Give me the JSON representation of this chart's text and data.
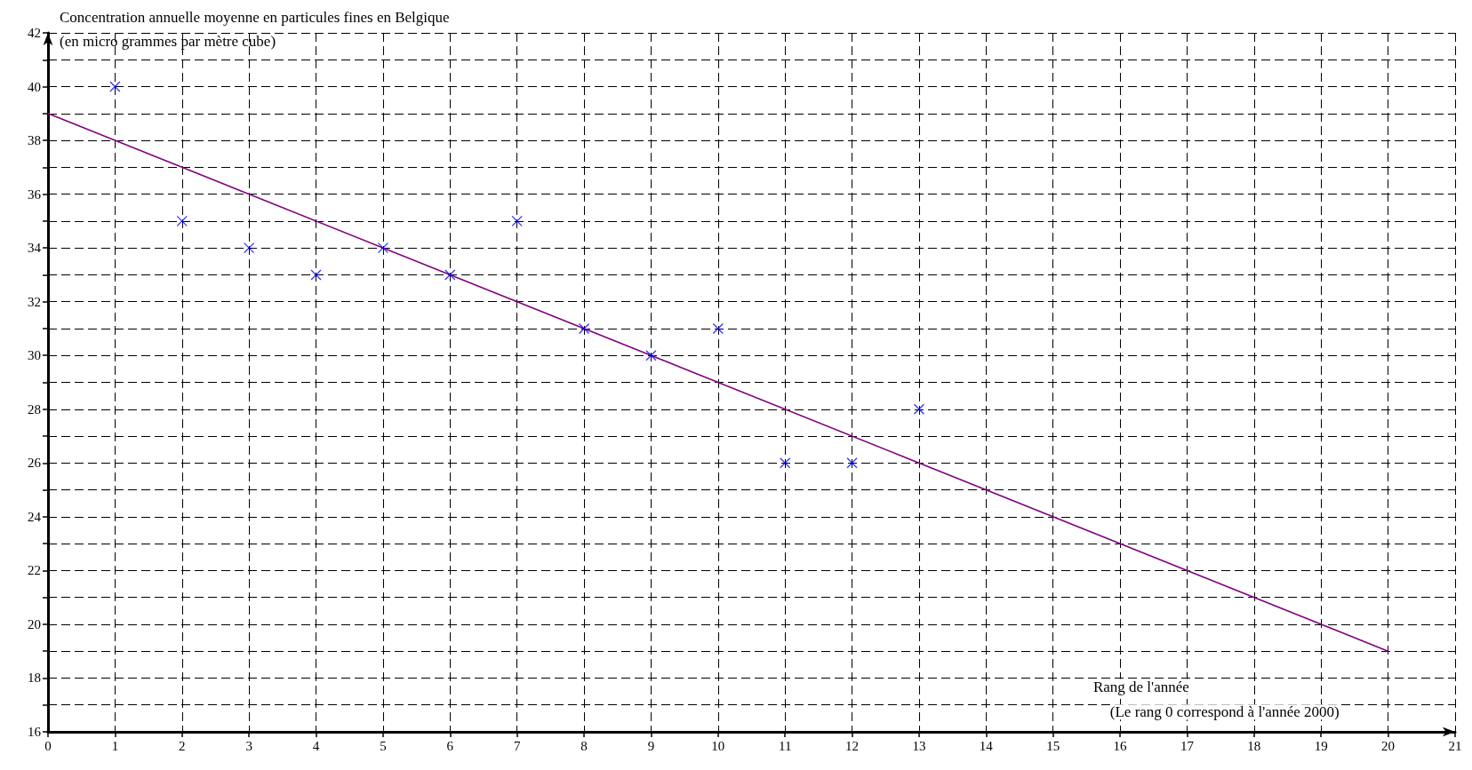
{
  "chart_data": {
    "type": "scatter",
    "title": "Concentration annuelle moyenne en particules fines en Belgique",
    "subtitle": "(en micro grammes par mètre cube)",
    "xlabel": "Rang de l'année",
    "annotations": [
      "(Le rang 0 correspond à l'année 2000)"
    ],
    "xlim": [
      0,
      21
    ],
    "xticks": [
      0,
      1,
      2,
      3,
      4,
      5,
      6,
      7,
      8,
      9,
      10,
      11,
      12,
      13,
      14,
      15,
      16,
      17,
      18,
      19,
      20,
      21
    ],
    "ylim": [
      16,
      42
    ],
    "yticks": [
      16,
      {
        "value": 17,
        "label": null
      },
      18,
      {
        "value": 19,
        "label": null
      },
      20,
      {
        "value": 21,
        "label": null
      },
      22,
      {
        "value": 23,
        "label": null
      },
      24,
      {
        "value": 25,
        "label": null
      },
      26,
      {
        "value": 27,
        "label": null
      },
      28,
      {
        "value": 29,
        "label": null
      },
      30,
      {
        "value": 31,
        "label": null
      },
      32,
      {
        "value": 33,
        "label": null
      },
      34,
      {
        "value": 35,
        "label": null
      },
      36,
      {
        "value": 37,
        "label": null
      },
      38,
      {
        "value": 39,
        "label": null
      },
      40,
      {
        "value": 41,
        "label": null
      },
      42
    ],
    "grid": true,
    "marker": "cross",
    "series": [
      {
        "color": "#0000ff",
        "x": [
          1,
          2,
          3,
          4,
          5,
          6,
          7,
          8,
          9,
          10,
          11,
          12,
          13
        ],
        "values": [
          40,
          35,
          34,
          33,
          34,
          33,
          35,
          31,
          30,
          31,
          26,
          26,
          28
        ]
      },
      {
        "type": "line",
        "color": "#800080",
        "marker": "none",
        "line_style": "solid",
        "x": [
          0,
          20
        ],
        "values": [
          39,
          19
        ]
      }
    ]
  }
}
